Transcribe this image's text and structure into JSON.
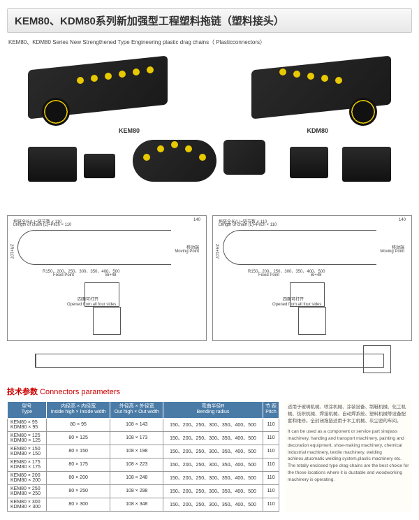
{
  "title": "KEM80、KDM80系列新加强型工程塑料拖链（塑料接头）",
  "subtitle": "KEM80、KDM80 Series New Strengthened Type Engineering plastic drag chains（ Plasticconnectors）",
  "labels": {
    "kem": "KEM80",
    "kdm": "KDM80"
  },
  "diag": {
    "length": "拖链全长(L)=链节数 × 110",
    "length_en": "Length of chain (L)=Pitch × 110",
    "moving": "移动端",
    "moving_en": "Moving Point",
    "fixed": "固定端",
    "fixed_en": "Fixed Point",
    "open": "四面可打开",
    "open_en": "Opened from all four sides",
    "r": "R150、200、250、300、350、400、500",
    "bi": "Bi+48",
    "h1": "140",
    "h2": "2R+107"
  },
  "sec_title": "技术参数",
  "sec_title_en": "Connectors parameters",
  "th": {
    "type": "型号",
    "type_en": "Type",
    "in": "内径高 × 内径宽",
    "in_en": "Inside high × Inside width",
    "out": "外径高 × 外径宽",
    "out_en": "Out high × Out width",
    "r": "弯曲半径R",
    "r_en": "Bending radius",
    "p": "节 距",
    "p_en": "Pitch"
  },
  "rows": [
    {
      "t1": "KEM80 × 95",
      "t2": "KDM80 × 95",
      "in": "80 × 95",
      "out": "108 × 143",
      "r": "150、200、250、300、350、400、500",
      "p": "110"
    },
    {
      "t1": "KEM80 × 125",
      "t2": "KDM80 × 125",
      "in": "80 × 125",
      "out": "108 × 173",
      "r": "150、200、250、300、350、400、500",
      "p": "110"
    },
    {
      "t1": "KEM80 × 150",
      "t2": "KDM80 × 150",
      "in": "80 × 150",
      "out": "108 × 198",
      "r": "150、200、250、300、350、400、500",
      "p": "110"
    },
    {
      "t1": "KEM80 × 175",
      "t2": "KDM80 × 175",
      "in": "80 × 175",
      "out": "108 × 223",
      "r": "150、200、250、300、350、400、500",
      "p": "110"
    },
    {
      "t1": "KEM80 × 200",
      "t2": "KDM80 × 200",
      "in": "80 × 200",
      "out": "108 × 248",
      "r": "150、200、250、300、350、400、500",
      "p": "110"
    },
    {
      "t1": "KEM80 × 250",
      "t2": "KDM80 × 250",
      "in": "80 × 250",
      "out": "108 × 298",
      "r": "150、200、250、300、350、400、500",
      "p": "110"
    },
    {
      "t1": "KEM80 × 300",
      "t2": "KDM80 × 300",
      "in": "80 × 300",
      "out": "108 × 348",
      "r": "150、200、250、300、350、400、500",
      "p": "110"
    }
  ],
  "side": {
    "cn": "适用于玻璃机械、喷涂机械、涂装设备、制鞋机械、化工机械、纺织机械、焊接机械、自动焊系统、塑料机械等设备配套和维修。全封闭拖链适用于木工机械、灰尘密的车间。",
    "en": "It can be used as a component or service part sinqlass machinery, handing and transport machinery, painting and decoration equipment, shoe-making machinery, chemical industrial machinery, textile machinery, welding achines,atuomatic welding system,plastic machinery etc. The totally enclosed type drag chains are the best choice for the those locations where it is dustable and woodworking machinery is operating."
  }
}
